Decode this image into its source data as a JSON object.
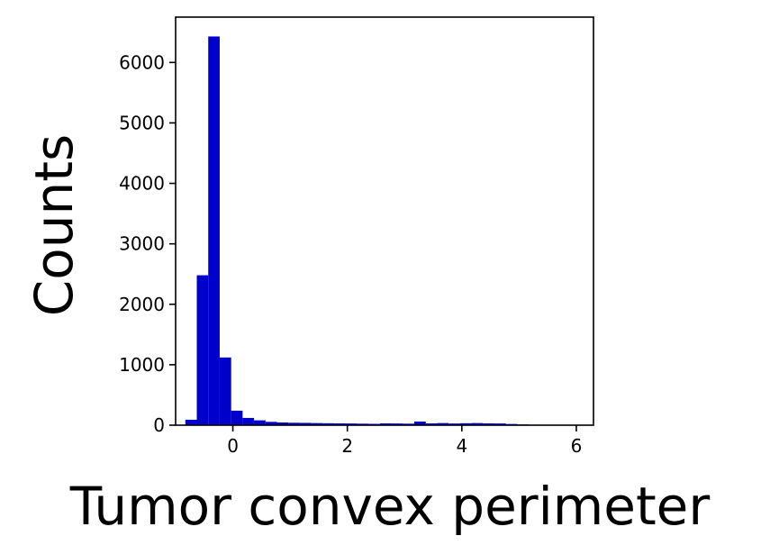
{
  "chart_data": {
    "type": "bar",
    "title": "",
    "xlabel": "Tumor convex perimeter",
    "ylabel": "Counts",
    "xlim": [
      -1.0,
      6.3
    ],
    "ylim": [
      0,
      6750
    ],
    "grid": false,
    "bar_color": "#0000cc",
    "bin_edges": [
      -0.83,
      -0.63,
      -0.43,
      -0.23,
      -0.03,
      0.17,
      0.37,
      0.57,
      0.77,
      0.97,
      1.17,
      1.37,
      1.57,
      1.77,
      1.97,
      2.17,
      2.37,
      2.57,
      2.77,
      2.97,
      3.17,
      3.37,
      3.57,
      3.77,
      3.97,
      4.17,
      4.37,
      4.57,
      4.77,
      4.97,
      5.17,
      5.37,
      5.57,
      5.77,
      5.97
    ],
    "values": [
      90,
      2480,
      6430,
      1120,
      240,
      120,
      80,
      55,
      45,
      40,
      38,
      35,
      32,
      30,
      28,
      25,
      22,
      30,
      28,
      25,
      60,
      30,
      35,
      28,
      32,
      35,
      30,
      28,
      20,
      12,
      8,
      5,
      4,
      3
    ],
    "x_ticks": [
      0,
      2,
      4,
      6
    ],
    "x_tick_labels": [
      "0",
      "2",
      "4",
      "6"
    ],
    "y_ticks": [
      0,
      1000,
      2000,
      3000,
      4000,
      5000,
      6000
    ],
    "y_tick_labels": [
      "0",
      "1000",
      "2000",
      "3000",
      "4000",
      "5000",
      "6000"
    ]
  }
}
